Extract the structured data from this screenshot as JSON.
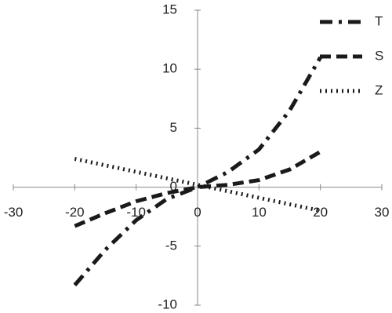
{
  "chart_data": {
    "type": "line",
    "x": [
      -20,
      -15,
      -10,
      -5,
      0,
      5,
      10,
      15,
      20
    ],
    "series": [
      {
        "name": "T",
        "color": "#1a1a1a",
        "dash": "dashdot",
        "values": [
          -8.3,
          -5.3,
          -2.8,
          -1.0,
          0,
          1.3,
          3.2,
          6.5,
          11
        ]
      },
      {
        "name": "S",
        "color": "#1a1a1a",
        "dash": "dash",
        "values": [
          -3.3,
          -2.2,
          -1.2,
          -0.5,
          0,
          0.2,
          0.6,
          1.5,
          3
        ]
      },
      {
        "name": "Z",
        "color": "#1a1a1a",
        "dash": "dot",
        "values": [
          2.4,
          1.85,
          1.3,
          0.75,
          0.2,
          -0.35,
          -0.9,
          -1.45,
          -2.0
        ]
      }
    ],
    "xlim": [
      -30,
      30
    ],
    "xticks": [
      -30,
      -20,
      -10,
      0,
      10,
      20,
      30
    ],
    "ylim": [
      -10,
      15
    ],
    "yticks": [
      -10,
      -5,
      0,
      5,
      10,
      15
    ],
    "legend": "top-right"
  }
}
